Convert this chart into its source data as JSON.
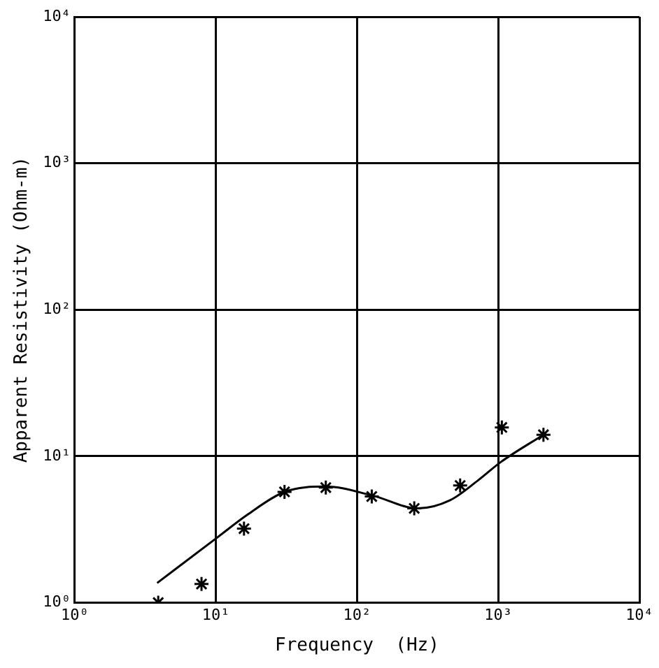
{
  "chart_data": {
    "type": "scatter",
    "xlabel": "Frequency  (Hz)",
    "ylabel": "Apparent Resistivity (Ohm-m)",
    "log": "xy",
    "grid": true,
    "legend": false,
    "xlim": [
      1,
      10000
    ],
    "ylim": [
      1,
      10000
    ],
    "xticks": [
      {
        "value": 1,
        "label": "10⁰"
      },
      {
        "value": 10,
        "label": "10¹"
      },
      {
        "value": 100,
        "label": "10²"
      },
      {
        "value": 1000,
        "label": "10³"
      },
      {
        "value": 10000,
        "label": "10⁴"
      }
    ],
    "yticks": [
      {
        "value": 1,
        "label": "10⁰"
      },
      {
        "value": 10,
        "label": "10¹"
      },
      {
        "value": 100,
        "label": "10²"
      },
      {
        "value": 1000,
        "label": "10³"
      },
      {
        "value": 10000,
        "label": "10⁴"
      }
    ],
    "series": [
      {
        "marker": "cross",
        "color": "#000000",
        "x": [
          3.9,
          7.9,
          15.8,
          30.6,
          60,
          127,
          254,
          537,
          1060,
          2090
        ],
        "values": [
          1,
          1.34,
          3.2,
          5.7,
          6.1,
          5.3,
          4.4,
          6.3,
          15.7,
          14.0
        ]
      },
      {
        "type": "line",
        "marker": "none",
        "line_style": "solid",
        "color": "#000000",
        "x": [
          3.83,
          10,
          16.8,
          30.6,
          60,
          127,
          270,
          456,
          715,
          1040,
          2090
        ],
        "values": [
          1.36,
          2.74,
          4.0,
          5.7,
          6.2,
          5.4,
          4.4,
          5.0,
          6.8,
          9.1,
          14.0
        ]
      }
    ]
  }
}
